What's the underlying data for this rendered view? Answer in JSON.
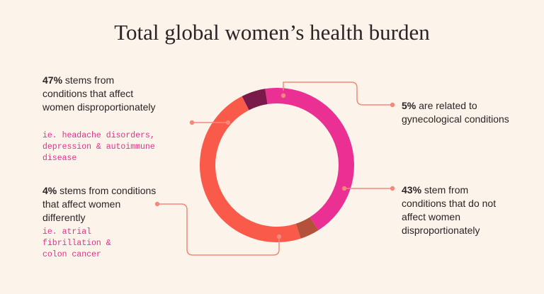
{
  "title": "Total global women’s health burden",
  "chart_data": {
    "type": "pie",
    "variant": "donut",
    "title": "Total global women’s health burden",
    "slices": [
      {
        "value": 5,
        "color": "#7a1a4b"
      },
      {
        "value": 43,
        "color": "#ea3193"
      },
      {
        "value": 4,
        "color": "#b5503a"
      },
      {
        "value": 47,
        "color": "#fa5a4a"
      }
    ]
  },
  "callouts": {
    "c47": {
      "pct": "47%",
      "text": " stems from conditions that affect women disproportionately",
      "example": "ie. headache disorders, depression & autoimmune disease"
    },
    "c4": {
      "pct": "4%",
      "text": " stems from conditions that affect women differently",
      "example": "ie. atrial fibrillation & colon cancer"
    },
    "c5": {
      "pct": "5%",
      "text": " are related to gynecological conditions"
    },
    "c43": {
      "pct": "43%",
      "text": " stem from conditions that do not affect women disproportionately"
    }
  },
  "colors": {
    "leader": "#f4897a",
    "background": "#fcf4ea",
    "example_text": "#e0328a"
  }
}
